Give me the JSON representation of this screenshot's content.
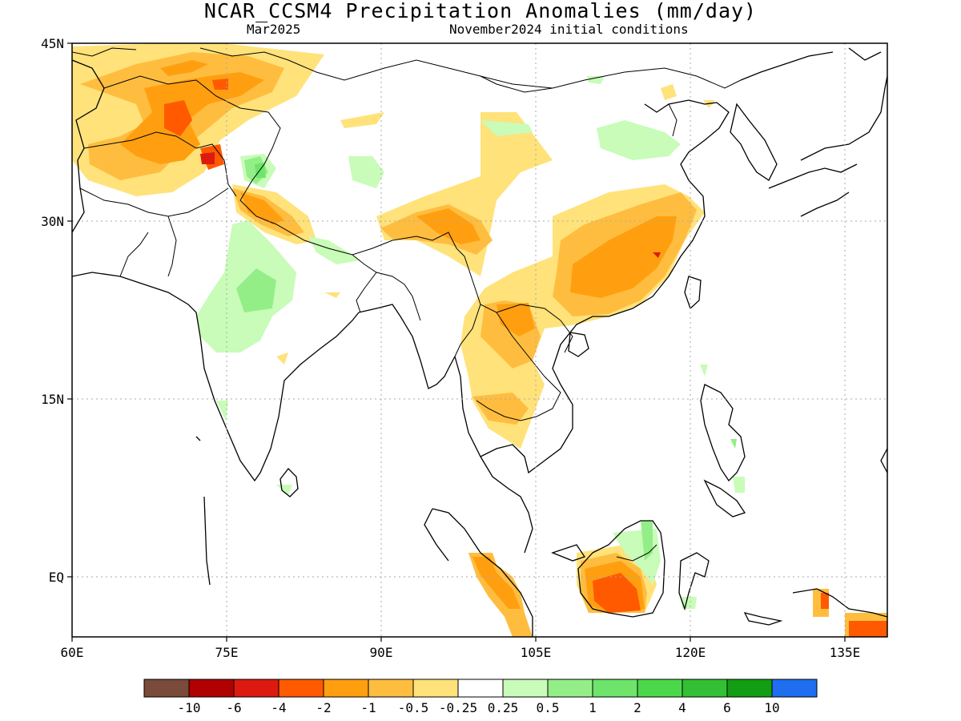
{
  "title": "NCAR_CCSM4 Precipitation Anomalies (mm/day)",
  "valid_month": "Mar2025",
  "init_conditions": "November2024 initial conditions",
  "lat_labels": [
    "45N",
    "30N",
    "15N",
    "EQ"
  ],
  "lon_labels": [
    "60E",
    "75E",
    "90E",
    "105E",
    "120E",
    "135E"
  ],
  "colorbar": {
    "colors": [
      "#7a4a3a",
      "#b00000",
      "#dd1a10",
      "#ff5a00",
      "#ff9f10",
      "#ffbd40",
      "#ffe27a",
      "#ffffff",
      "#c8fcb8",
      "#94ee88",
      "#6ee46a",
      "#4ad84a",
      "#34c034",
      "#129e12",
      "#1f6ef0"
    ],
    "tick_labels": [
      "-10",
      "-6",
      "-4",
      "-2",
      "-1",
      "-0.5",
      "-0.25",
      "0.25",
      "0.5",
      "1",
      "2",
      "4",
      "6",
      "10"
    ]
  }
}
